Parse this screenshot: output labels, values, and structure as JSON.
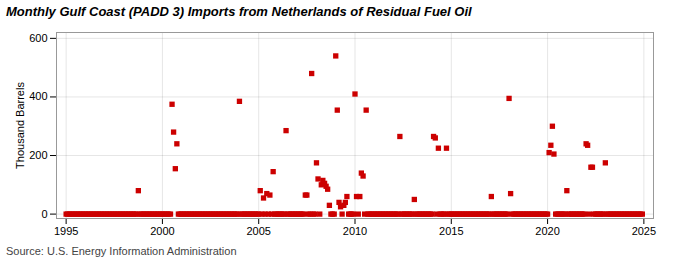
{
  "chart_data": {
    "type": "scatter",
    "title": "Monthly Gulf Coast (PADD 3) Imports from Netherlands of Residual Fuel Oil",
    "ylabel": "Thousand Barrels",
    "source": "Source: U.S. Energy Information Administration",
    "xlim": [
      1994.5,
      2025.5
    ],
    "ylim": [
      -15,
      620
    ],
    "xticks": [
      1995,
      2000,
      2005,
      2010,
      2015,
      2020,
      2025
    ],
    "yticks": [
      0,
      200,
      400,
      600
    ],
    "grid": true,
    "color": "#cc0000",
    "marker": "square",
    "x": [
      1995.0,
      1995.08,
      1995.17,
      1995.25,
      1995.33,
      1995.42,
      1995.5,
      1995.58,
      1995.67,
      1995.75,
      1995.83,
      1995.92,
      1996.0,
      1996.08,
      1996.17,
      1996.25,
      1996.33,
      1996.42,
      1996.5,
      1996.58,
      1996.67,
      1996.75,
      1996.83,
      1996.92,
      1997.0,
      1997.08,
      1997.17,
      1997.25,
      1997.33,
      1997.42,
      1997.5,
      1997.58,
      1997.67,
      1997.75,
      1997.83,
      1997.92,
      1998.0,
      1998.08,
      1998.17,
      1998.25,
      1998.33,
      1998.42,
      1998.5,
      1998.58,
      1998.67,
      1998.75,
      1998.83,
      1998.92,
      1999.0,
      1999.08,
      1999.17,
      1999.25,
      1999.33,
      1999.42,
      1999.5,
      1999.58,
      1999.67,
      1999.75,
      1999.83,
      1999.92,
      2000.0,
      2000.08,
      2000.17,
      2000.25,
      2000.33,
      2000.42,
      2000.5,
      2000.58,
      2000.67,
      2000.75,
      2000.83,
      2000.92,
      2001.0,
      2001.08,
      2001.17,
      2001.25,
      2001.33,
      2001.42,
      2001.5,
      2001.58,
      2001.67,
      2001.75,
      2001.83,
      2001.92,
      2002.0,
      2002.08,
      2002.17,
      2002.25,
      2002.33,
      2002.42,
      2002.5,
      2002.58,
      2002.67,
      2002.75,
      2002.83,
      2002.92,
      2003.0,
      2003.08,
      2003.17,
      2003.25,
      2003.33,
      2003.42,
      2003.5,
      2003.58,
      2003.67,
      2003.75,
      2003.83,
      2003.92,
      2004.0,
      2004.08,
      2004.17,
      2004.25,
      2004.33,
      2004.42,
      2004.5,
      2004.58,
      2004.67,
      2004.75,
      2004.83,
      2004.92,
      2005.0,
      2005.08,
      2005.17,
      2005.25,
      2005.33,
      2005.42,
      2005.5,
      2005.58,
      2005.67,
      2005.75,
      2005.83,
      2005.92,
      2006.0,
      2006.08,
      2006.17,
      2006.25,
      2006.33,
      2006.42,
      2006.5,
      2006.58,
      2006.67,
      2006.75,
      2006.83,
      2006.92,
      2007.0,
      2007.08,
      2007.17,
      2007.25,
      2007.33,
      2007.42,
      2007.5,
      2007.58,
      2007.67,
      2007.75,
      2007.83,
      2007.92,
      2008.0,
      2008.08,
      2008.17,
      2008.25,
      2008.33,
      2008.42,
      2008.5,
      2008.58,
      2008.67,
      2008.75,
      2008.83,
      2008.92,
      2009.0,
      2009.08,
      2009.17,
      2009.25,
      2009.33,
      2009.42,
      2009.5,
      2009.58,
      2009.67,
      2009.75,
      2009.83,
      2009.92,
      2010.0,
      2010.08,
      2010.17,
      2010.25,
      2010.33,
      2010.42,
      2010.5,
      2010.58,
      2010.67,
      2010.75,
      2010.83,
      2010.92,
      2011.0,
      2011.08,
      2011.17,
      2011.25,
      2011.33,
      2011.42,
      2011.5,
      2011.58,
      2011.67,
      2011.75,
      2011.83,
      2011.92,
      2012.0,
      2012.08,
      2012.17,
      2012.25,
      2012.33,
      2012.42,
      2012.5,
      2012.58,
      2012.67,
      2012.75,
      2012.83,
      2012.92,
      2013.0,
      2013.08,
      2013.17,
      2013.25,
      2013.33,
      2013.42,
      2013.5,
      2013.58,
      2013.67,
      2013.75,
      2013.83,
      2013.92,
      2014.0,
      2014.08,
      2014.17,
      2014.25,
      2014.33,
      2014.42,
      2014.5,
      2014.58,
      2014.67,
      2014.75,
      2014.83,
      2014.92,
      2015.0,
      2015.08,
      2015.17,
      2015.25,
      2015.33,
      2015.42,
      2015.5,
      2015.58,
      2015.67,
      2015.75,
      2015.83,
      2015.92,
      2016.0,
      2016.08,
      2016.17,
      2016.25,
      2016.33,
      2016.42,
      2016.5,
      2016.58,
      2016.67,
      2016.75,
      2016.83,
      2016.92,
      2017.0,
      2017.08,
      2017.17,
      2017.25,
      2017.33,
      2017.42,
      2017.5,
      2017.58,
      2017.67,
      2017.75,
      2017.83,
      2017.92,
      2018.0,
      2018.08,
      2018.17,
      2018.25,
      2018.33,
      2018.42,
      2018.5,
      2018.58,
      2018.67,
      2018.75,
      2018.83,
      2018.92,
      2019.0,
      2019.08,
      2019.17,
      2019.25,
      2019.33,
      2019.42,
      2019.5,
      2019.58,
      2019.67,
      2019.75,
      2019.83,
      2019.92,
      2020.0,
      2020.08,
      2020.17,
      2020.25,
      2020.33,
      2020.42,
      2020.5,
      2020.58,
      2020.67,
      2020.75,
      2020.83,
      2020.92,
      2021.0,
      2021.08,
      2021.17,
      2021.25,
      2021.33,
      2021.42,
      2021.5,
      2021.58,
      2021.67,
      2021.75,
      2021.83,
      2021.92,
      2022.0,
      2022.08,
      2022.17,
      2022.25,
      2022.33,
      2022.42,
      2022.5,
      2022.58,
      2022.67,
      2022.75,
      2022.83,
      2022.92,
      2023.0,
      2023.08,
      2023.17,
      2023.25,
      2023.33,
      2023.42,
      2023.5,
      2023.58,
      2023.67,
      2023.75,
      2023.83,
      2023.92,
      2024.0,
      2024.08,
      2024.17,
      2024.25,
      2024.33,
      2024.42,
      2024.5,
      2024.58,
      2024.67,
      2024.75,
      2024.83,
      2024.92
    ],
    "values": [
      0,
      0,
      0,
      0,
      0,
      0,
      0,
      0,
      0,
      0,
      0,
      0,
      0,
      0,
      0,
      0,
      0,
      0,
      0,
      0,
      0,
      0,
      0,
      0,
      0,
      0,
      0,
      0,
      0,
      0,
      0,
      0,
      0,
      0,
      0,
      0,
      0,
      0,
      0,
      0,
      0,
      0,
      0,
      0,
      0,
      80,
      0,
      0,
      0,
      0,
      0,
      0,
      0,
      0,
      0,
      0,
      0,
      0,
      0,
      0,
      0,
      0,
      0,
      0,
      0,
      0,
      375,
      280,
      155,
      240,
      0,
      0,
      0,
      0,
      0,
      0,
      0,
      0,
      0,
      0,
      0,
      0,
      0,
      0,
      0,
      0,
      0,
      0,
      0,
      0,
      0,
      0,
      0,
      0,
      0,
      0,
      0,
      0,
      0,
      0,
      0,
      0,
      0,
      0,
      0,
      0,
      0,
      0,
      385,
      0,
      0,
      0,
      0,
      0,
      0,
      0,
      0,
      0,
      0,
      0,
      0,
      80,
      0,
      55,
      0,
      70,
      0,
      65,
      0,
      145,
      0,
      0,
      0,
      0,
      0,
      0,
      0,
      285,
      0,
      0,
      0,
      0,
      0,
      0,
      0,
      0,
      0,
      0,
      0,
      65,
      65,
      0,
      0,
      480,
      0,
      0,
      175,
      120,
      0,
      100,
      115,
      105,
      95,
      85,
      30,
      0,
      0,
      0,
      540,
      355,
      40,
      25,
      0,
      30,
      40,
      60,
      0,
      0,
      0,
      0,
      410,
      60,
      0,
      60,
      140,
      130,
      0,
      355,
      0,
      0,
      0,
      0,
      0,
      0,
      0,
      0,
      0,
      0,
      0,
      0,
      0,
      0,
      0,
      0,
      0,
      0,
      0,
      0,
      265,
      0,
      0,
      0,
      0,
      0,
      0,
      0,
      0,
      50,
      0,
      0,
      0,
      0,
      0,
      0,
      0,
      0,
      0,
      0,
      0,
      265,
      260,
      0,
      225,
      0,
      0,
      0,
      0,
      225,
      0,
      0,
      0,
      0,
      0,
      0,
      0,
      0,
      0,
      0,
      0,
      0,
      0,
      0,
      0,
      0,
      0,
      0,
      0,
      0,
      0,
      0,
      0,
      0,
      0,
      0,
      0,
      60,
      0,
      0,
      0,
      0,
      0,
      0,
      0,
      0,
      0,
      0,
      395,
      70,
      0,
      0,
      0,
      0,
      0,
      0,
      0,
      0,
      0,
      0,
      0,
      0,
      0,
      0,
      0,
      0,
      0,
      0,
      0,
      0,
      0,
      0,
      0,
      210,
      235,
      300,
      205,
      0,
      0,
      0,
      0,
      0,
      0,
      0,
      80,
      0,
      0,
      0,
      0,
      0,
      0,
      0,
      0,
      0,
      0,
      0,
      240,
      235,
      0,
      160,
      160,
      0,
      0,
      0,
      0,
      0,
      0,
      0,
      175,
      0,
      0,
      0,
      0,
      0,
      0,
      0,
      0,
      0,
      0,
      0,
      0,
      0,
      0,
      0,
      0,
      0,
      0,
      0,
      0,
      0,
      0,
      0
    ]
  }
}
